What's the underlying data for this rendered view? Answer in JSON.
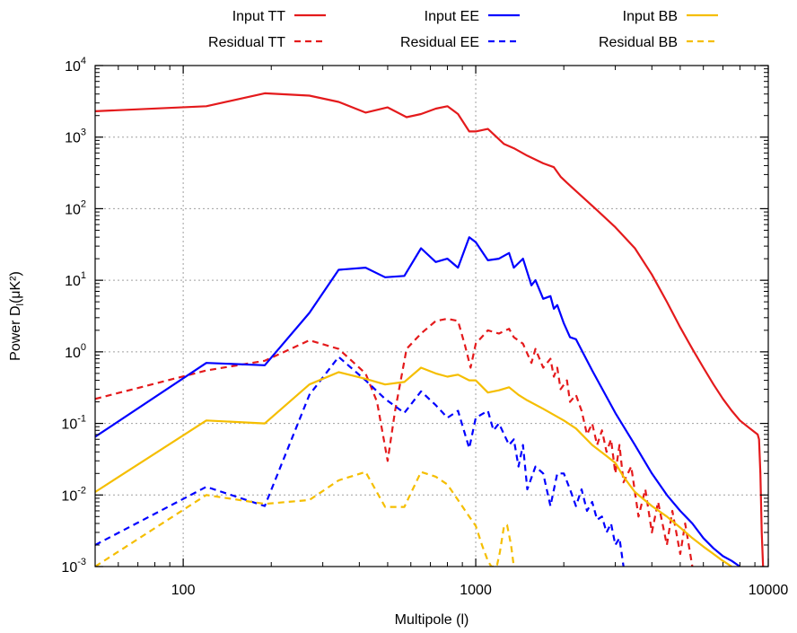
{
  "chart_data": {
    "type": "line",
    "xlabel": "Multipole (l)",
    "ylabel_main": "Power D",
    "ylabel_sub": "l",
    "ylabel_tail": "(μK²)",
    "xscale": "log",
    "yscale": "log",
    "xlim": [
      50,
      10000
    ],
    "ylim": [
      0.001,
      10000
    ],
    "x_ticks": [
      100,
      1000,
      10000
    ],
    "x_tick_labels": [
      "100",
      "1000",
      "10000"
    ],
    "y_ticks": [
      0.001,
      0.01,
      0.1,
      1,
      10,
      100,
      1000,
      10000
    ],
    "y_tick_labels": [
      {
        "base": "10",
        "exp": "-3"
      },
      {
        "base": "10",
        "exp": "-2"
      },
      {
        "base": "10",
        "exp": "-1"
      },
      {
        "base": "10",
        "exp": "0"
      },
      {
        "base": "10",
        "exp": "1"
      },
      {
        "base": "10",
        "exp": "2"
      },
      {
        "base": "10",
        "exp": "3"
      },
      {
        "base": "10",
        "exp": "4"
      }
    ],
    "grid": true,
    "legend_position": "top (outside plot)",
    "series": [
      {
        "name": "Input TT",
        "color": "#e41a1c",
        "dash": "solid",
        "points": [
          [
            50,
            2300
          ],
          [
            120,
            2700
          ],
          [
            190,
            4100
          ],
          [
            270,
            3800
          ],
          [
            340,
            3100
          ],
          [
            420,
            2200
          ],
          [
            500,
            2600
          ],
          [
            580,
            1900
          ],
          [
            650,
            2100
          ],
          [
            730,
            2500
          ],
          [
            800,
            2700
          ],
          [
            870,
            2100
          ],
          [
            950,
            1200
          ],
          [
            1000,
            1200
          ],
          [
            1100,
            1300
          ],
          [
            1250,
            800
          ],
          [
            1350,
            700
          ],
          [
            1500,
            550
          ],
          [
            1700,
            430
          ],
          [
            1850,
            380
          ],
          [
            1950,
            280
          ],
          [
            2050,
            230
          ],
          [
            2300,
            150
          ],
          [
            2600,
            95
          ],
          [
            3000,
            55
          ],
          [
            3500,
            28
          ],
          [
            4000,
            12
          ],
          [
            4500,
            5
          ],
          [
            5000,
            2.2
          ],
          [
            5500,
            1.1
          ],
          [
            6000,
            0.6
          ],
          [
            6500,
            0.35
          ],
          [
            7000,
            0.22
          ],
          [
            7500,
            0.15
          ],
          [
            8000,
            0.11
          ],
          [
            8500,
            0.09
          ],
          [
            9000,
            0.075
          ],
          [
            9200,
            0.07
          ],
          [
            9300,
            0.06
          ],
          [
            9400,
            0.02
          ],
          [
            9500,
            0.003
          ],
          [
            9600,
            0.001
          ]
        ]
      },
      {
        "name": "Residual TT",
        "color": "#e41a1c",
        "dash": "dashed",
        "points": [
          [
            50,
            0.22
          ],
          [
            120,
            0.55
          ],
          [
            190,
            0.75
          ],
          [
            270,
            1.45
          ],
          [
            340,
            1.1
          ],
          [
            420,
            0.5
          ],
          [
            460,
            0.2
          ],
          [
            500,
            0.03
          ],
          [
            530,
            0.15
          ],
          [
            580,
            1.1
          ],
          [
            650,
            1.8
          ],
          [
            730,
            2.7
          ],
          [
            800,
            2.9
          ],
          [
            870,
            2.7
          ],
          [
            920,
            1.2
          ],
          [
            960,
            0.6
          ],
          [
            1000,
            1.3
          ],
          [
            1100,
            2
          ],
          [
            1200,
            1.8
          ],
          [
            1300,
            2.1
          ],
          [
            1350,
            1.6
          ],
          [
            1450,
            1.3
          ],
          [
            1550,
            0.7
          ],
          [
            1600,
            1.1
          ],
          [
            1700,
            0.6
          ],
          [
            1800,
            0.8
          ],
          [
            1850,
            0.45
          ],
          [
            1900,
            0.6
          ],
          [
            1950,
            0.3
          ],
          [
            2050,
            0.4
          ],
          [
            2100,
            0.2
          ],
          [
            2200,
            0.25
          ],
          [
            2300,
            0.15
          ],
          [
            2400,
            0.07
          ],
          [
            2500,
            0.1
          ],
          [
            2600,
            0.05
          ],
          [
            2700,
            0.08
          ],
          [
            2800,
            0.04
          ],
          [
            2900,
            0.06
          ],
          [
            3000,
            0.02
          ],
          [
            3100,
            0.05
          ],
          [
            3200,
            0.015
          ],
          [
            3400,
            0.025
          ],
          [
            3600,
            0.005
          ],
          [
            3800,
            0.012
          ],
          [
            4000,
            0.003
          ],
          [
            4200,
            0.008
          ],
          [
            4500,
            0.002
          ],
          [
            4700,
            0.006
          ],
          [
            5000,
            0.0015
          ],
          [
            5200,
            0.004
          ],
          [
            5500,
            0.001
          ]
        ]
      },
      {
        "name": "Input EE",
        "color": "#0000ff",
        "dash": "solid",
        "points": [
          [
            50,
            0.065
          ],
          [
            120,
            0.7
          ],
          [
            190,
            0.65
          ],
          [
            270,
            3.5
          ],
          [
            340,
            14
          ],
          [
            420,
            15
          ],
          [
            490,
            11
          ],
          [
            570,
            11.5
          ],
          [
            650,
            28
          ],
          [
            730,
            18
          ],
          [
            800,
            20
          ],
          [
            870,
            15
          ],
          [
            950,
            40
          ],
          [
            1000,
            34
          ],
          [
            1100,
            19
          ],
          [
            1200,
            20
          ],
          [
            1300,
            24
          ],
          [
            1350,
            15
          ],
          [
            1450,
            20
          ],
          [
            1550,
            8.5
          ],
          [
            1600,
            10
          ],
          [
            1700,
            5.5
          ],
          [
            1800,
            6
          ],
          [
            1850,
            4
          ],
          [
            1900,
            4.5
          ],
          [
            2000,
            2.5
          ],
          [
            2100,
            1.6
          ],
          [
            2200,
            1.5
          ],
          [
            2500,
            0.55
          ],
          [
            3000,
            0.14
          ],
          [
            3500,
            0.05
          ],
          [
            4000,
            0.02
          ],
          [
            4500,
            0.01
          ],
          [
            5000,
            0.006
          ],
          [
            5500,
            0.004
          ],
          [
            6000,
            0.0025
          ],
          [
            6500,
            0.0018
          ],
          [
            7000,
            0.0014
          ],
          [
            7500,
            0.0012
          ],
          [
            8000,
            0.001
          ]
        ]
      },
      {
        "name": "Residual EE",
        "color": "#0000ff",
        "dash": "dashed",
        "points": [
          [
            50,
            0.002
          ],
          [
            120,
            0.013
          ],
          [
            190,
            0.007
          ],
          [
            270,
            0.25
          ],
          [
            340,
            0.85
          ],
          [
            420,
            0.4
          ],
          [
            490,
            0.22
          ],
          [
            570,
            0.14
          ],
          [
            650,
            0.28
          ],
          [
            730,
            0.18
          ],
          [
            800,
            0.12
          ],
          [
            870,
            0.15
          ],
          [
            950,
            0.045
          ],
          [
            1000,
            0.12
          ],
          [
            1100,
            0.15
          ],
          [
            1150,
            0.08
          ],
          [
            1200,
            0.1
          ],
          [
            1300,
            0.05
          ],
          [
            1350,
            0.06
          ],
          [
            1400,
            0.025
          ],
          [
            1450,
            0.05
          ],
          [
            1500,
            0.012
          ],
          [
            1600,
            0.025
          ],
          [
            1700,
            0.02
          ],
          [
            1800,
            0.007
          ],
          [
            1900,
            0.02
          ],
          [
            2000,
            0.02
          ],
          [
            2100,
            0.012
          ],
          [
            2200,
            0.007
          ],
          [
            2300,
            0.012
          ],
          [
            2400,
            0.006
          ],
          [
            2500,
            0.008
          ],
          [
            2600,
            0.0045
          ],
          [
            2700,
            0.005
          ],
          [
            2800,
            0.003
          ],
          [
            2900,
            0.004
          ],
          [
            3000,
            0.002
          ],
          [
            3100,
            0.0025
          ],
          [
            3200,
            0.001
          ]
        ]
      },
      {
        "name": "Input BB",
        "color": "#f5be00",
        "dash": "solid",
        "points": [
          [
            50,
            0.011
          ],
          [
            120,
            0.11
          ],
          [
            190,
            0.1
          ],
          [
            270,
            0.35
          ],
          [
            340,
            0.52
          ],
          [
            420,
            0.42
          ],
          [
            490,
            0.35
          ],
          [
            570,
            0.38
          ],
          [
            650,
            0.6
          ],
          [
            730,
            0.5
          ],
          [
            800,
            0.45
          ],
          [
            870,
            0.48
          ],
          [
            950,
            0.4
          ],
          [
            1000,
            0.4
          ],
          [
            1100,
            0.27
          ],
          [
            1200,
            0.29
          ],
          [
            1300,
            0.32
          ],
          [
            1400,
            0.25
          ],
          [
            1500,
            0.21
          ],
          [
            1700,
            0.16
          ],
          [
            2000,
            0.11
          ],
          [
            2200,
            0.085
          ],
          [
            2500,
            0.05
          ],
          [
            2800,
            0.035
          ],
          [
            3000,
            0.028
          ],
          [
            3200,
            0.018
          ],
          [
            3500,
            0.011
          ],
          [
            4000,
            0.007
          ],
          [
            4500,
            0.005
          ],
          [
            5000,
            0.0035
          ],
          [
            5500,
            0.0025
          ],
          [
            6000,
            0.0019
          ],
          [
            6500,
            0.0015
          ],
          [
            7000,
            0.0012
          ],
          [
            7500,
            0.001
          ]
        ]
      },
      {
        "name": "Residual BB",
        "color": "#f5be00",
        "dash": "dashed",
        "points": [
          [
            50,
            0.001
          ],
          [
            120,
            0.01
          ],
          [
            190,
            0.0075
          ],
          [
            270,
            0.0085
          ],
          [
            340,
            0.016
          ],
          [
            420,
            0.021
          ],
          [
            490,
            0.0068
          ],
          [
            570,
            0.0068
          ],
          [
            650,
            0.021
          ],
          [
            730,
            0.018
          ],
          [
            800,
            0.014
          ],
          [
            870,
            0.0085
          ],
          [
            950,
            0.005
          ],
          [
            1000,
            0.0037
          ],
          [
            1050,
            0.002
          ],
          [
            1100,
            0.0012
          ],
          [
            1130,
            0.001
          ],
          [
            1180,
            0.001
          ],
          [
            1210,
            0.0016
          ],
          [
            1250,
            0.0037
          ],
          [
            1280,
            0.0038
          ],
          [
            1320,
            0.002
          ],
          [
            1350,
            0.001
          ]
        ]
      }
    ]
  }
}
